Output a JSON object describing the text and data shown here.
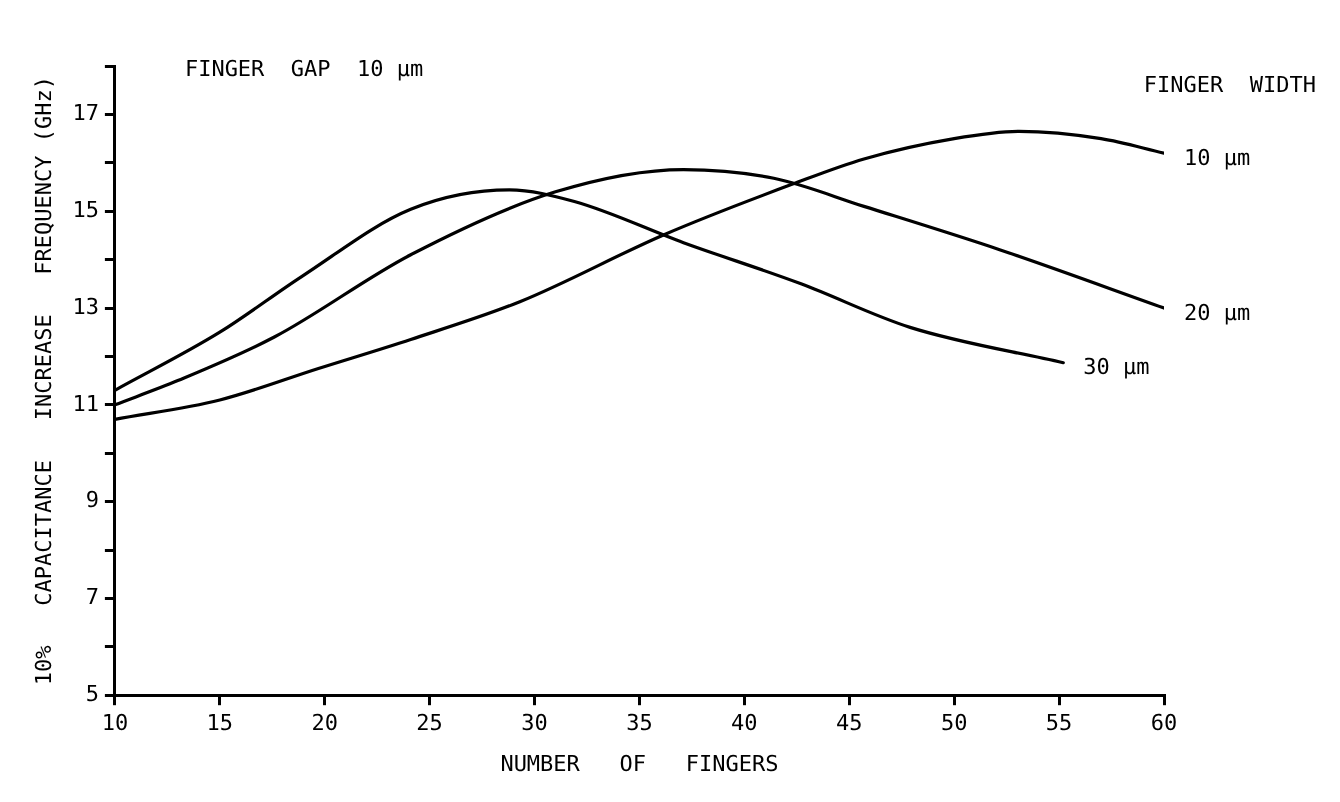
{
  "chart_data": {
    "type": "line",
    "xlabel": "NUMBER   OF   FINGERS",
    "ylabel": "10%   CAPACITANCE   INCREASE   FREQUENCY (GHz)",
    "legend_title": "FINGER  WIDTH",
    "annotations": [
      "FINGER  GAP  10 µm"
    ],
    "xlim": [
      10,
      60
    ],
    "xticks": [
      10,
      15,
      20,
      25,
      30,
      35,
      40,
      45,
      50,
      55,
      60
    ],
    "ylim": [
      5,
      18
    ],
    "yticks": [
      5,
      {
        "value": 6,
        "label": null
      },
      7,
      {
        "value": 8,
        "label": null
      },
      9,
      {
        "value": 10,
        "label": null
      },
      11,
      {
        "value": 12,
        "label": null
      },
      13,
      {
        "value": 14,
        "label": null
      },
      15,
      {
        "value": 16,
        "label": null
      },
      17,
      {
        "value": 18,
        "label": null
      }
    ],
    "grid": false,
    "legend": false,
    "marker": "none",
    "line_style": "solid",
    "series": [
      {
        "name": "10 µm",
        "color": "#000000",
        "x": [
          10,
          15,
          19.7,
          24.1,
          29.3,
          36.2,
          42.3,
          45.7,
          50,
          53.1,
          57,
          60
        ],
        "values": [
          10.7,
          11.1,
          11.75,
          12.35,
          13.13,
          14.52,
          15.56,
          16.08,
          16.5,
          16.65,
          16.5,
          16.2
        ]
      },
      {
        "name": "20 µm",
        "color": "#000000",
        "x": [
          10,
          13,
          17.6,
          24.1,
          31,
          37.1,
          41.4,
          45.7,
          52.2,
          60
        ],
        "values": [
          11.0,
          11.5,
          12.4,
          14.1,
          15.4,
          15.86,
          15.68,
          15.1,
          14.2,
          13.0
        ]
      },
      {
        "name": "30 µm",
        "color": "#000000",
        "x": [
          10,
          15,
          18.9,
          24.1,
          28.8,
          31.9,
          37.1,
          42.7,
          47.9,
          55.2
        ],
        "values": [
          11.3,
          12.5,
          13.65,
          15.04,
          15.44,
          15.2,
          14.35,
          13.5,
          12.6,
          11.87
        ]
      }
    ]
  }
}
